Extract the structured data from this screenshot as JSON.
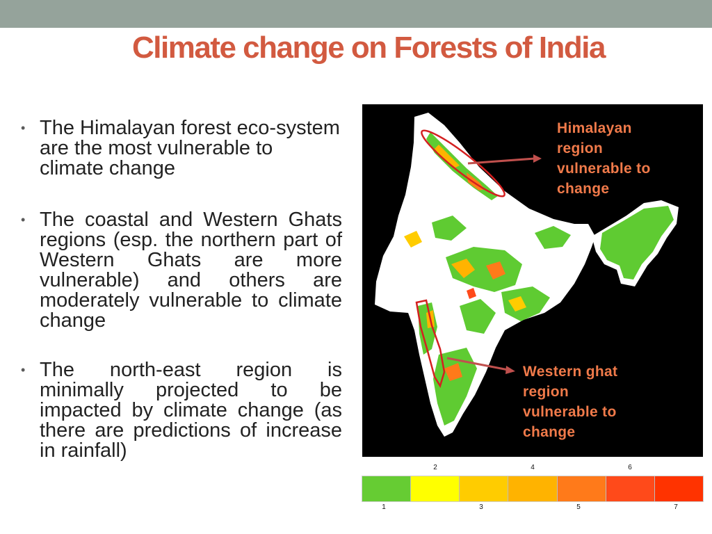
{
  "slide": {
    "title": "Climate change on Forests of India",
    "bullets": [
      "The Himalayan forest eco-system are the most vulnerable to climate change",
      "The coastal and Western Ghats regions (esp. the northern part of Western Ghats are more vulnerable) and others are moderately vulnerable to climate change",
      "The north-east region is minimally projected to be impacted by climate change (as there are predictions of increase in rainfall)"
    ],
    "bullet_glyph": "•"
  },
  "map": {
    "labels": {
      "himalaya_lines": [
        "Himalayan",
        "region",
        "vulnerable to",
        "change"
      ],
      "western_lines": [
        "Western ghat",
        "region",
        "vulnerable to",
        "change"
      ]
    },
    "colors": {
      "background": "#000000",
      "land": "#ffffff",
      "label": "#f07a4a",
      "arrow": "#c0504d",
      "outline": "#d42020"
    }
  },
  "legend": {
    "top_ticks": [
      "2",
      "4",
      "6"
    ],
    "bottom_ticks": [
      "1",
      "3",
      "5",
      "7"
    ],
    "colors": [
      "#66cc33",
      "#ffff00",
      "#ffcc00",
      "#ffb300",
      "#ff7a1a",
      "#ff4a1a",
      "#ff3300"
    ]
  }
}
